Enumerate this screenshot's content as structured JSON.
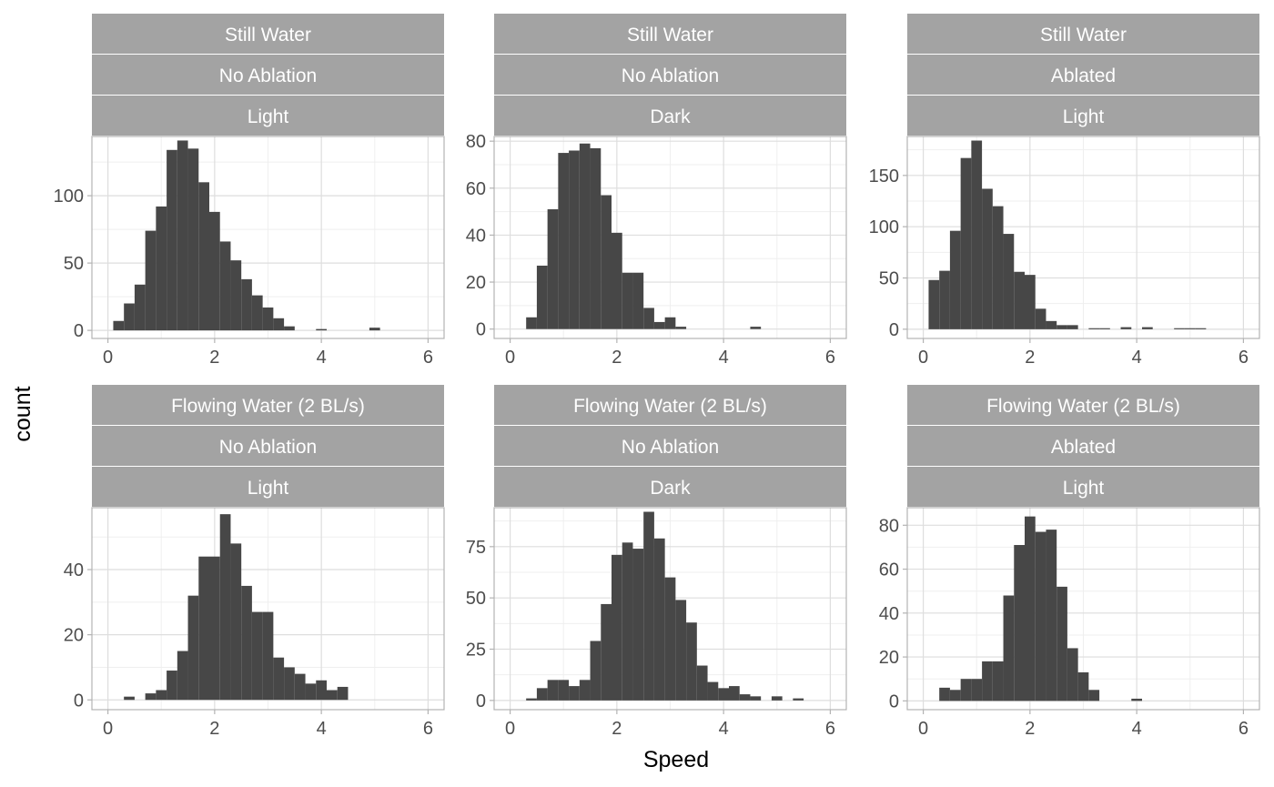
{
  "figure": {
    "xlabel": "Speed",
    "ylabel": "count",
    "colors": {
      "bar": "#474747",
      "strip": "#a3a3a3",
      "strip_text": "#ffffff",
      "grid_major": "#dedede",
      "grid_minor": "#efefef",
      "panel_border": "#b3b3b3",
      "tick_text": "#4d4d4d"
    }
  },
  "chart_data": [
    {
      "type": "bar",
      "strips": [
        "Still Water",
        "No Ablation",
        "Light"
      ],
      "xlim": [
        -0.3,
        6.3
      ],
      "ylim": [
        -6,
        144
      ],
      "xticks": [
        0,
        2,
        4,
        6
      ],
      "yticks": [
        0,
        50,
        100
      ],
      "bin_width": 0.2,
      "bins": [
        [
          0.2,
          7
        ],
        [
          0.4,
          20
        ],
        [
          0.6,
          34
        ],
        [
          0.8,
          74
        ],
        [
          1.0,
          92
        ],
        [
          1.2,
          134
        ],
        [
          1.4,
          141
        ],
        [
          1.6,
          135
        ],
        [
          1.8,
          110
        ],
        [
          2.0,
          88
        ],
        [
          2.2,
          66
        ],
        [
          2.4,
          52
        ],
        [
          2.6,
          38
        ],
        [
          2.8,
          26
        ],
        [
          3.0,
          17
        ],
        [
          3.2,
          9
        ],
        [
          3.4,
          3
        ],
        [
          4.0,
          1
        ],
        [
          5.0,
          2
        ]
      ]
    },
    {
      "type": "bar",
      "strips": [
        "Still Water",
        "No Ablation",
        "Dark"
      ],
      "xlim": [
        -0.3,
        6.3
      ],
      "ylim": [
        -4,
        82
      ],
      "xticks": [
        0,
        2,
        4,
        6
      ],
      "yticks": [
        0,
        20,
        40,
        60,
        80
      ],
      "bin_width": 0.2,
      "bins": [
        [
          0.4,
          5
        ],
        [
          0.6,
          27
        ],
        [
          0.8,
          51
        ],
        [
          1.0,
          75
        ],
        [
          1.2,
          76
        ],
        [
          1.4,
          79
        ],
        [
          1.6,
          77
        ],
        [
          1.8,
          57
        ],
        [
          2.0,
          41
        ],
        [
          2.2,
          24
        ],
        [
          2.4,
          24
        ],
        [
          2.6,
          9
        ],
        [
          2.8,
          3
        ],
        [
          3.0,
          5
        ],
        [
          3.2,
          1
        ],
        [
          4.6,
          1
        ]
      ]
    },
    {
      "type": "bar",
      "strips": [
        "Still Water",
        "Ablated",
        "Light"
      ],
      "xlim": [
        -0.3,
        6.3
      ],
      "ylim": [
        -9,
        188
      ],
      "xticks": [
        0,
        2,
        4,
        6
      ],
      "yticks": [
        0,
        50,
        100,
        150
      ],
      "bin_width": 0.2,
      "bins": [
        [
          0.2,
          48
        ],
        [
          0.4,
          57
        ],
        [
          0.6,
          96
        ],
        [
          0.8,
          167
        ],
        [
          1.0,
          184
        ],
        [
          1.2,
          137
        ],
        [
          1.4,
          120
        ],
        [
          1.6,
          93
        ],
        [
          1.8,
          56
        ],
        [
          2.0,
          53
        ],
        [
          2.2,
          20
        ],
        [
          2.4,
          8
        ],
        [
          2.6,
          4
        ],
        [
          2.8,
          4
        ],
        [
          3.2,
          1
        ],
        [
          3.4,
          1
        ],
        [
          3.8,
          2
        ],
        [
          4.2,
          2
        ],
        [
          4.8,
          1
        ],
        [
          5.0,
          1
        ],
        [
          5.2,
          1
        ]
      ]
    },
    {
      "type": "bar",
      "strips": [
        "Flowing Water (2 BL/s)",
        "No Ablation",
        "Light"
      ],
      "xlim": [
        -0.3,
        6.3
      ],
      "ylim": [
        -3,
        59
      ],
      "xticks": [
        0,
        2,
        4,
        6
      ],
      "yticks": [
        0,
        20,
        40
      ],
      "bin_width": 0.2,
      "bins": [
        [
          0.4,
          1
        ],
        [
          0.8,
          2
        ],
        [
          1.0,
          3
        ],
        [
          1.2,
          9
        ],
        [
          1.4,
          15
        ],
        [
          1.6,
          32
        ],
        [
          1.8,
          44
        ],
        [
          2.0,
          44
        ],
        [
          2.2,
          57
        ],
        [
          2.4,
          48
        ],
        [
          2.6,
          35
        ],
        [
          2.8,
          27
        ],
        [
          3.0,
          27
        ],
        [
          3.2,
          13
        ],
        [
          3.4,
          10
        ],
        [
          3.6,
          8
        ],
        [
          3.8,
          5
        ],
        [
          4.0,
          6
        ],
        [
          4.2,
          3
        ],
        [
          4.4,
          4
        ]
      ]
    },
    {
      "type": "bar",
      "strips": [
        "Flowing Water (2 BL/s)",
        "No Ablation",
        "Dark"
      ],
      "xlim": [
        -0.3,
        6.3
      ],
      "ylim": [
        -4.5,
        94
      ],
      "xticks": [
        0,
        2,
        4,
        6
      ],
      "yticks": [
        0,
        25,
        50,
        75
      ],
      "bin_width": 0.2,
      "bins": [
        [
          0.4,
          1
        ],
        [
          0.6,
          6
        ],
        [
          0.8,
          10
        ],
        [
          1.0,
          10
        ],
        [
          1.2,
          7
        ],
        [
          1.4,
          10
        ],
        [
          1.6,
          29
        ],
        [
          1.8,
          47
        ],
        [
          2.0,
          71
        ],
        [
          2.2,
          77
        ],
        [
          2.4,
          74
        ],
        [
          2.6,
          92
        ],
        [
          2.8,
          79
        ],
        [
          3.0,
          60
        ],
        [
          3.2,
          49
        ],
        [
          3.4,
          38
        ],
        [
          3.6,
          17
        ],
        [
          3.8,
          9
        ],
        [
          4.0,
          6
        ],
        [
          4.2,
          7
        ],
        [
          4.4,
          3
        ],
        [
          4.6,
          2
        ],
        [
          5.0,
          2
        ],
        [
          5.4,
          1
        ]
      ]
    },
    {
      "type": "bar",
      "strips": [
        "Flowing Water (2 BL/s)",
        "Ablated",
        "Light"
      ],
      "xlim": [
        -0.3,
        6.3
      ],
      "ylim": [
        -4,
        88
      ],
      "xticks": [
        0,
        2,
        4,
        6
      ],
      "yticks": [
        0,
        20,
        40,
        60,
        80
      ],
      "bin_width": 0.2,
      "bins": [
        [
          0.4,
          6
        ],
        [
          0.6,
          5
        ],
        [
          0.8,
          10
        ],
        [
          1.0,
          10
        ],
        [
          1.2,
          18
        ],
        [
          1.4,
          18
        ],
        [
          1.6,
          48
        ],
        [
          1.8,
          71
        ],
        [
          2.0,
          84
        ],
        [
          2.2,
          77
        ],
        [
          2.4,
          78
        ],
        [
          2.6,
          52
        ],
        [
          2.8,
          24
        ],
        [
          3.0,
          13
        ],
        [
          3.2,
          5
        ],
        [
          4.0,
          1
        ]
      ]
    }
  ]
}
